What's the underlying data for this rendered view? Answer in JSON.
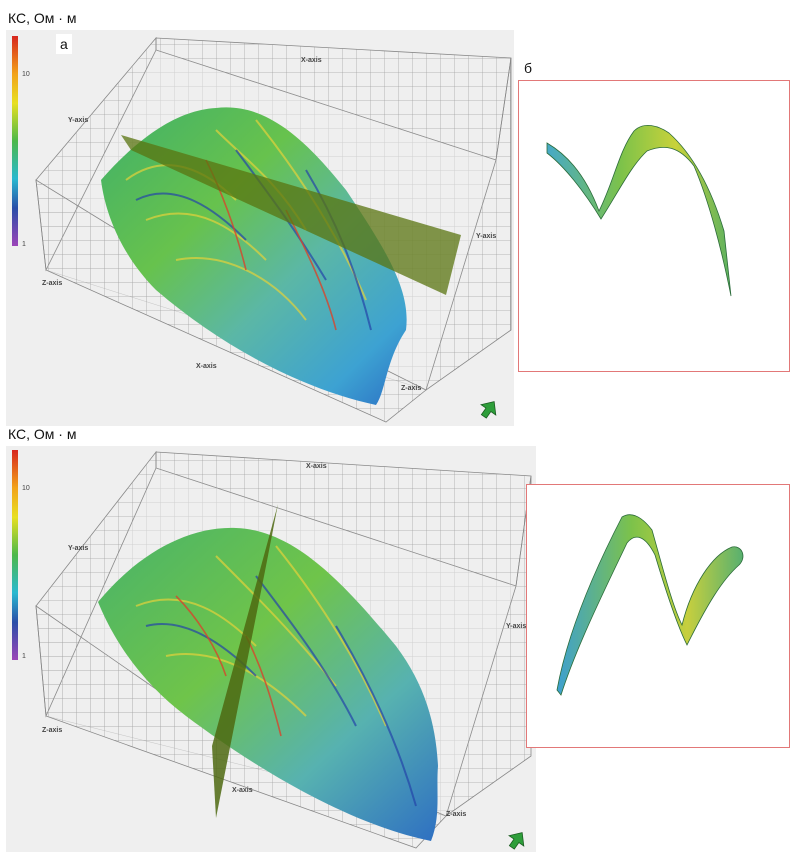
{
  "colorbar_label": "КС, Ом · м",
  "colorbar_ticks": {
    "mid": "10",
    "low": "1"
  },
  "axes": {
    "x": "X-axis",
    "y": "Y-axis",
    "z": "Z-axis"
  },
  "panels": {
    "top": {
      "letter_a": "а",
      "letter_b": "б"
    },
    "bottom": {}
  },
  "colors": {
    "frame_border": "#e27878",
    "plane_fill": "#5a7410",
    "grid_line": "#9a9a9a",
    "scene_bg": "#efefef",
    "arrow_green": "#2e9e3a"
  },
  "icons": [
    "colorbar-icon",
    "orientation-arrow-icon"
  ]
}
